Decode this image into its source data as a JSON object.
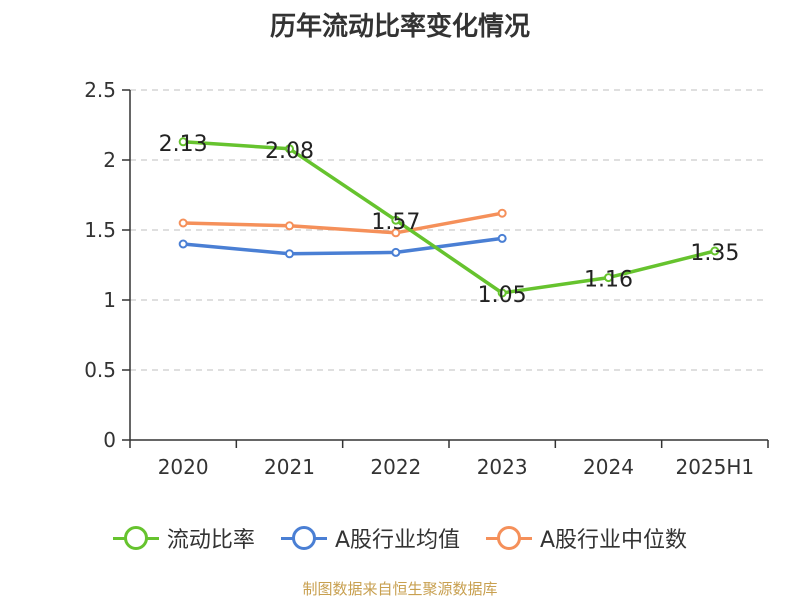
{
  "title": "历年流动比率变化情况",
  "source": "制图数据来自恒生聚源数据库",
  "chart_data": {
    "type": "line",
    "categories": [
      "2020",
      "2021",
      "2022",
      "2023",
      "2024",
      "2025H1"
    ],
    "ylim": [
      0,
      2.5
    ],
    "yticks": [
      "0",
      "0.5",
      "1",
      "1.5",
      "2",
      "2.5"
    ],
    "grid": true,
    "legend_position": "bottom",
    "series": [
      {
        "name": "流动比率",
        "color": "#66c32e",
        "values": [
          2.13,
          2.08,
          1.57,
          1.05,
          1.16,
          1.35
        ],
        "labels": [
          "2.13",
          "2.08",
          "1.57",
          "1.05",
          "1.16",
          "1.35"
        ]
      },
      {
        "name": "A股行业均值",
        "color": "#4a7fd4",
        "values": [
          1.4,
          1.33,
          1.34,
          1.44,
          null,
          null
        ]
      },
      {
        "name": "A股行业中位数",
        "color": "#f5905a",
        "values": [
          1.55,
          1.53,
          1.48,
          1.62,
          null,
          null
        ]
      }
    ]
  }
}
